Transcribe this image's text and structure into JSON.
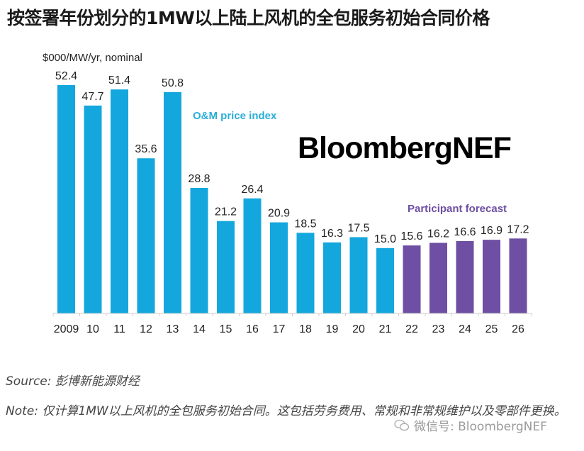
{
  "title": "按签署年份划分的1MW以上陆上风机的全包服务初始合同价格",
  "colors": {
    "historical": "#13a7dd",
    "forecast": "#6e4fa3",
    "axis": "#cccccc"
  },
  "chart_data": {
    "type": "bar",
    "title": "按签署年份划分的1MW以上陆上风机的全包服务初始合同价格",
    "ylabel": "$000/MW/yr, nominal",
    "xlabel": "",
    "categories": [
      "2009",
      "10",
      "11",
      "12",
      "13",
      "14",
      "15",
      "16",
      "17",
      "18",
      "19",
      "20",
      "21",
      "22",
      "23",
      "24",
      "25",
      "26"
    ],
    "series": [
      {
        "name": "O&M price index",
        "values": [
          52.4,
          47.7,
          51.4,
          35.6,
          50.8,
          28.8,
          21.2,
          26.4,
          20.9,
          18.5,
          16.3,
          17.5,
          15.0,
          null,
          null,
          null,
          null,
          null
        ]
      },
      {
        "name": "Participant forecast",
        "values": [
          null,
          null,
          null,
          null,
          null,
          null,
          null,
          null,
          null,
          null,
          null,
          null,
          null,
          15.6,
          16.2,
          16.6,
          16.9,
          17.2
        ]
      }
    ],
    "data_labels": [
      "52.4",
      "47.7",
      "51.4",
      "35.6",
      "50.8",
      "28.8",
      "21.2",
      "26.4",
      "20.9",
      "18.5",
      "16.3",
      "17.5",
      "15.0",
      "15.6",
      "16.2",
      "16.6",
      "16.9",
      "17.2"
    ],
    "annotations": [
      "O&M price index",
      "Participant forecast"
    ],
    "watermark": "BloombergNEF",
    "ylim": [
      0,
      55
    ],
    "grid": false,
    "legend": "none"
  },
  "footer": {
    "source": "Source: 彭博新能源财经",
    "note": "Note: 仅计算1MW以上风机的全包服务初始合同。这包括劳务费用、常规和非常规维护以及零部件更换。",
    "wechat": "微信号: BloombergNEF"
  }
}
